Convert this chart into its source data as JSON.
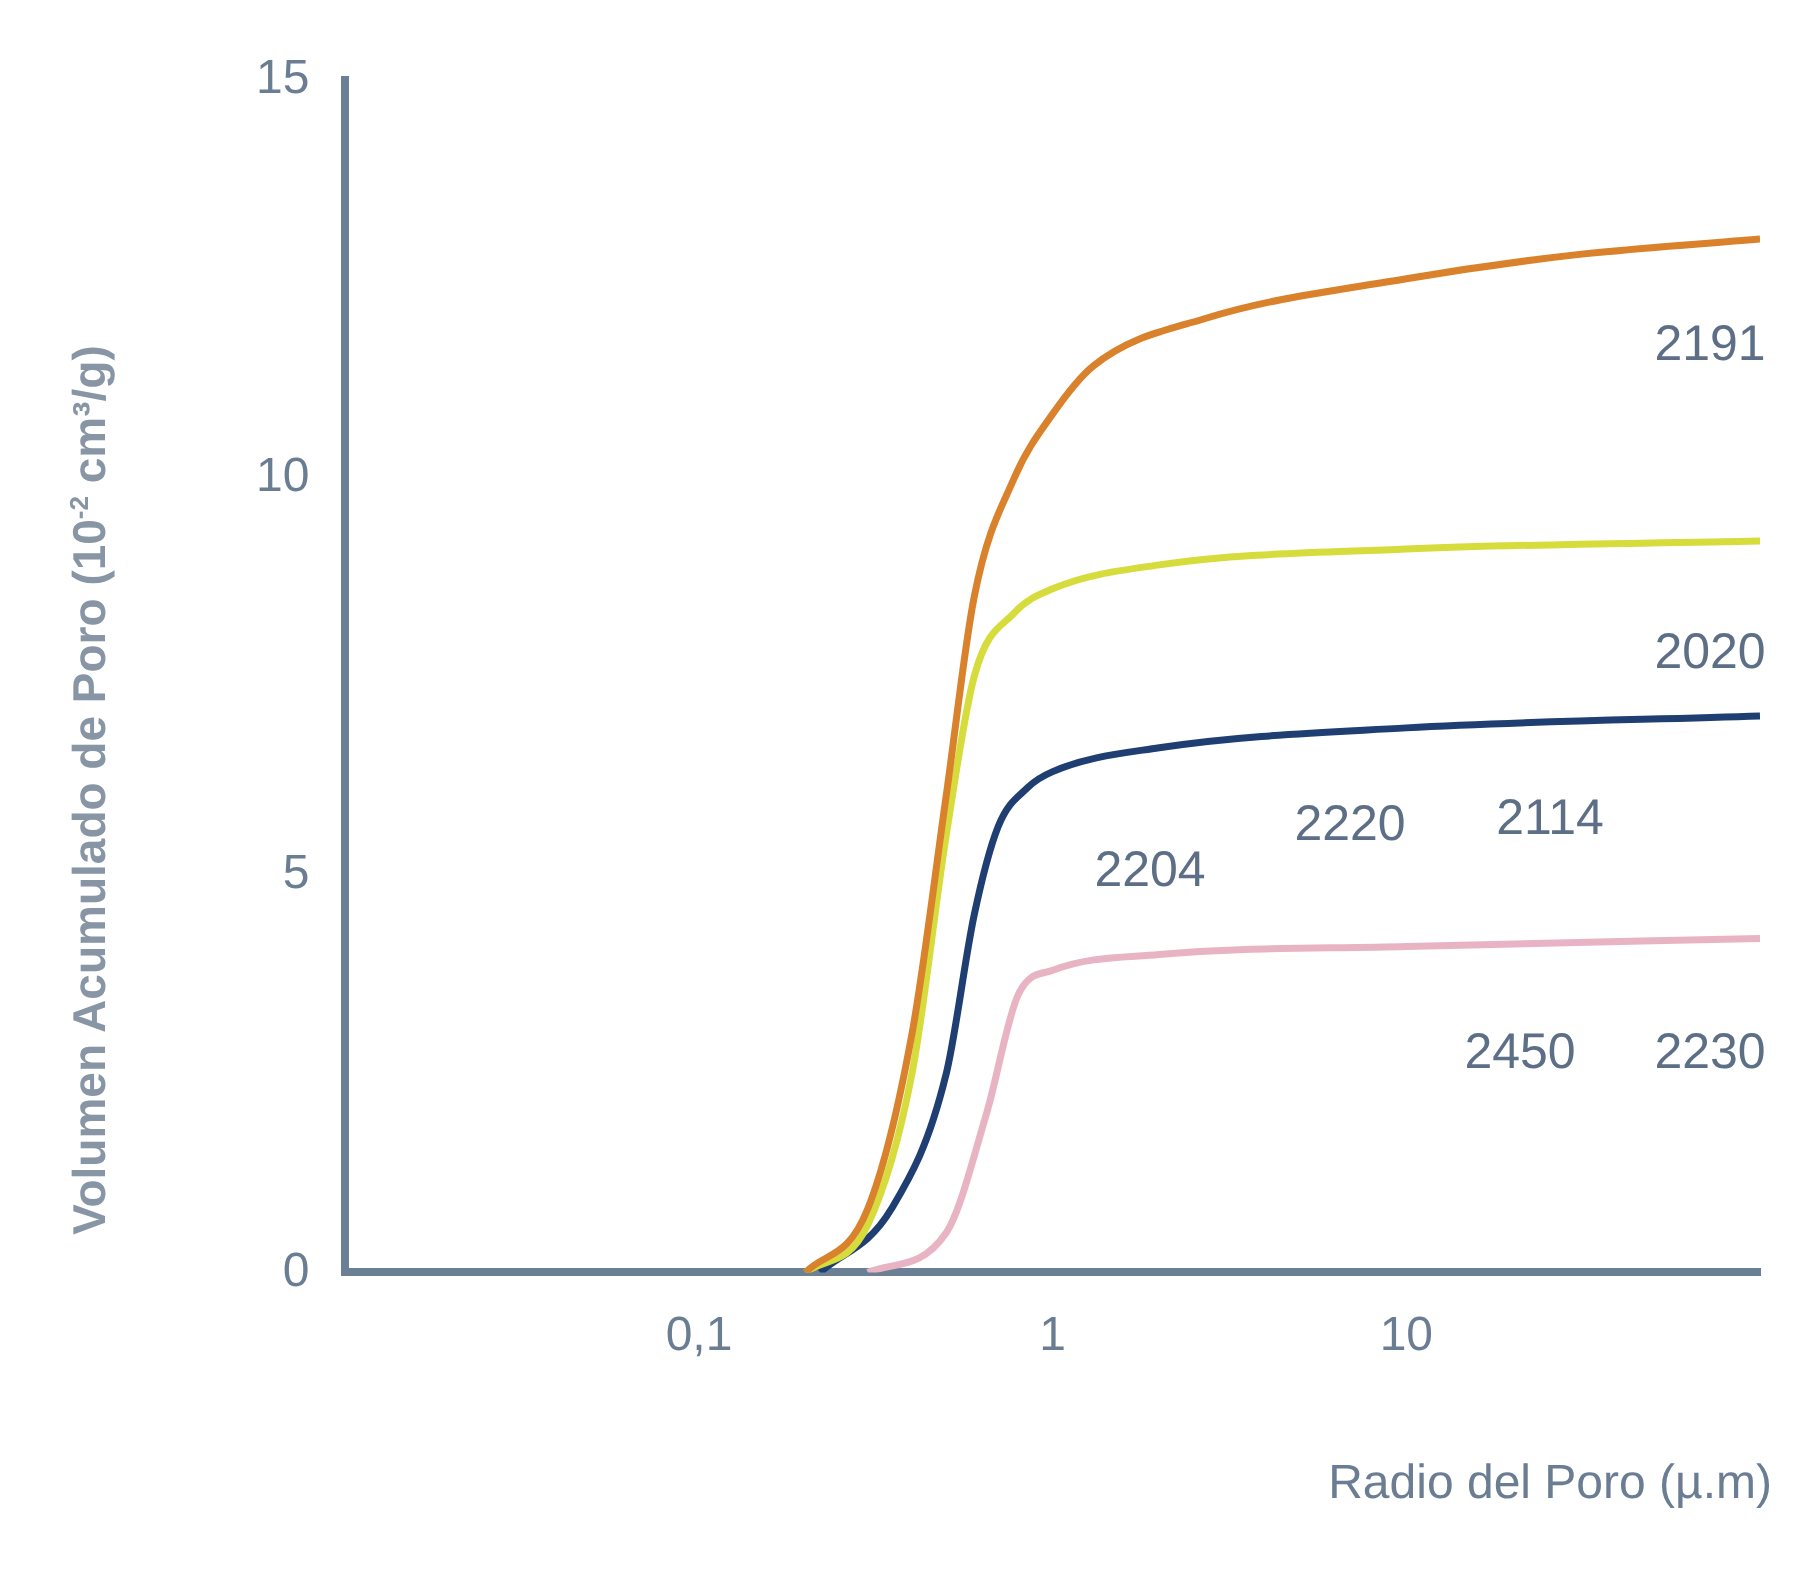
{
  "chart_data": {
    "type": "line",
    "xlabel": "Radio del Poro (µ.m)",
    "ylabel": "Volumen Acumulado de Poro (10$^{-2}$ cm³/g)",
    "log": "x",
    "xlim": [
      0.01,
      100
    ],
    "xticks": [
      {
        "value": 0.1,
        "label": "0,1"
      },
      1,
      10
    ],
    "ylim": [
      0,
      15
    ],
    "yticks": [
      0,
      5,
      10,
      15
    ],
    "grid": false,
    "legend": false,
    "marker": "none",
    "line_style": "solid",
    "series": [
      {
        "color": "#d9822b",
        "x": [
          0.2,
          0.3,
          0.4,
          0.5,
          0.6,
          0.78,
          1,
          1.3,
          2.7,
          10,
          30,
          100
        ],
        "values": [
          0,
          0.8,
          3,
          6,
          8.5,
          10,
          10.8,
          11.4,
          12,
          12.5,
          12.8,
          13
        ]
      },
      {
        "color": "#d6dc3c",
        "x": [
          0.2,
          0.3,
          0.4,
          0.5,
          0.6,
          0.78,
          1,
          2,
          10,
          100
        ],
        "values": [
          0,
          0.6,
          2.5,
          5.5,
          7.5,
          8.3,
          8.6,
          8.9,
          9.1,
          9.2
        ]
      },
      {
        "color": "#1f3f73",
        "x": [
          0.22,
          0.35,
          0.5,
          0.6,
          0.7,
          0.85,
          1,
          2,
          10,
          100
        ],
        "values": [
          0,
          0.8,
          2.5,
          4.5,
          5.6,
          6.1,
          6.3,
          6.6,
          6.85,
          7
        ]
      },
      {
        "color": "#e8b4c4",
        "x": [
          0.3,
          0.5,
          0.65,
          0.8,
          1,
          2,
          10,
          100
        ],
        "values": [
          0,
          0.5,
          2,
          3.5,
          3.8,
          4,
          4.1,
          4.2
        ]
      }
    ],
    "annotations": [
      "2191",
      "2020",
      "2204",
      "2220",
      "2114",
      "2450",
      "2230"
    ]
  }
}
